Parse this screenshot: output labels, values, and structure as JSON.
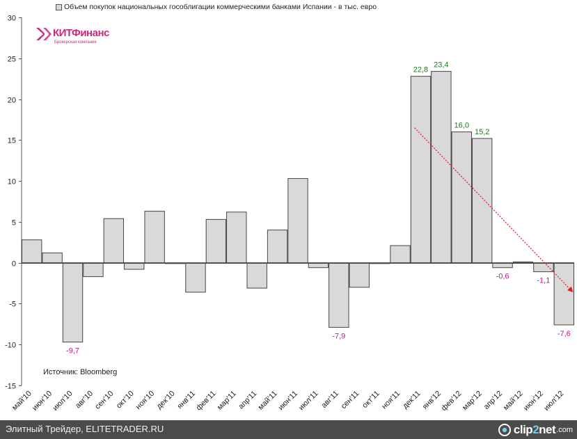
{
  "legend": {
    "label": "Объем покупок национальных гособлигации коммерческими банками Испании - в тыс. евро"
  },
  "logo": {
    "name": "КИТФинанс",
    "subtitle": "Брокерская компания",
    "color": "#d0267a"
  },
  "source": "Источник: Bloomberg",
  "footer": {
    "text": "Элитный Трейдер, ELITETRADER.RU",
    "brand_prefix": "clip",
    "brand_accent": "2",
    "brand_suffix": "net",
    "brand_tld": ".com"
  },
  "chart_data": {
    "type": "bar",
    "title": "Объем покупок национальных гособлигации коммерческими банками Испании - в тыс. евро",
    "xlabel": "",
    "ylabel": "",
    "ylim": [
      -15,
      30
    ],
    "yticks": [
      -15,
      -10,
      -5,
      0,
      5,
      10,
      15,
      20,
      25,
      30
    ],
    "categories": [
      "май'10",
      "июн'10",
      "июл'10",
      "авг'10",
      "сен'10",
      "окт'10",
      "ноя'10",
      "дек'10",
      "янв'11",
      "фев'11",
      "мар'11",
      "апр'11",
      "май'11",
      "июн'11",
      "июл'11",
      "авг'11",
      "сен'11",
      "окт'11",
      "ноя'11",
      "дек'11",
      "янв'12",
      "фев'12",
      "мар'12",
      "апр'12",
      "май'12",
      "июн'12",
      "июл'12"
    ],
    "values": [
      2.8,
      1.2,
      -9.7,
      -1.7,
      5.4,
      -0.8,
      6.3,
      -0.1,
      -3.6,
      5.3,
      6.2,
      -3.1,
      4.0,
      10.3,
      -0.6,
      -7.9,
      -3.0,
      -0.1,
      2.1,
      22.8,
      23.4,
      16.0,
      15.2,
      -0.6,
      0.1,
      -1.1,
      -7.6
    ],
    "data_labels": [
      {
        "index": 2,
        "text": "-9,7",
        "color": "#c0188c"
      },
      {
        "index": 15,
        "text": "-7,9",
        "color": "#c0188c"
      },
      {
        "index": 19,
        "text": "22,8",
        "color": "#1e7a1e"
      },
      {
        "index": 20,
        "text": "23,4",
        "color": "#1e7a1e"
      },
      {
        "index": 21,
        "text": "16,0",
        "color": "#1e7a1e"
      },
      {
        "index": 22,
        "text": "15,2",
        "color": "#1e7a1e"
      },
      {
        "index": 23,
        "text": "-0,6",
        "color": "#c0188c"
      },
      {
        "index": 25,
        "text": "-1,1",
        "color": "#c0188c"
      },
      {
        "index": 26,
        "text": "-7,6",
        "color": "#c0188c"
      }
    ],
    "trend_arrow": {
      "from": {
        "x": 19.2,
        "y": 16.5
      },
      "to": {
        "x": 26.9,
        "y": -3.5
      },
      "color": "#e02020"
    },
    "bar_fill": "#d9d9d9",
    "bar_stroke": "#444444",
    "grid": false,
    "legend_position": "top"
  }
}
